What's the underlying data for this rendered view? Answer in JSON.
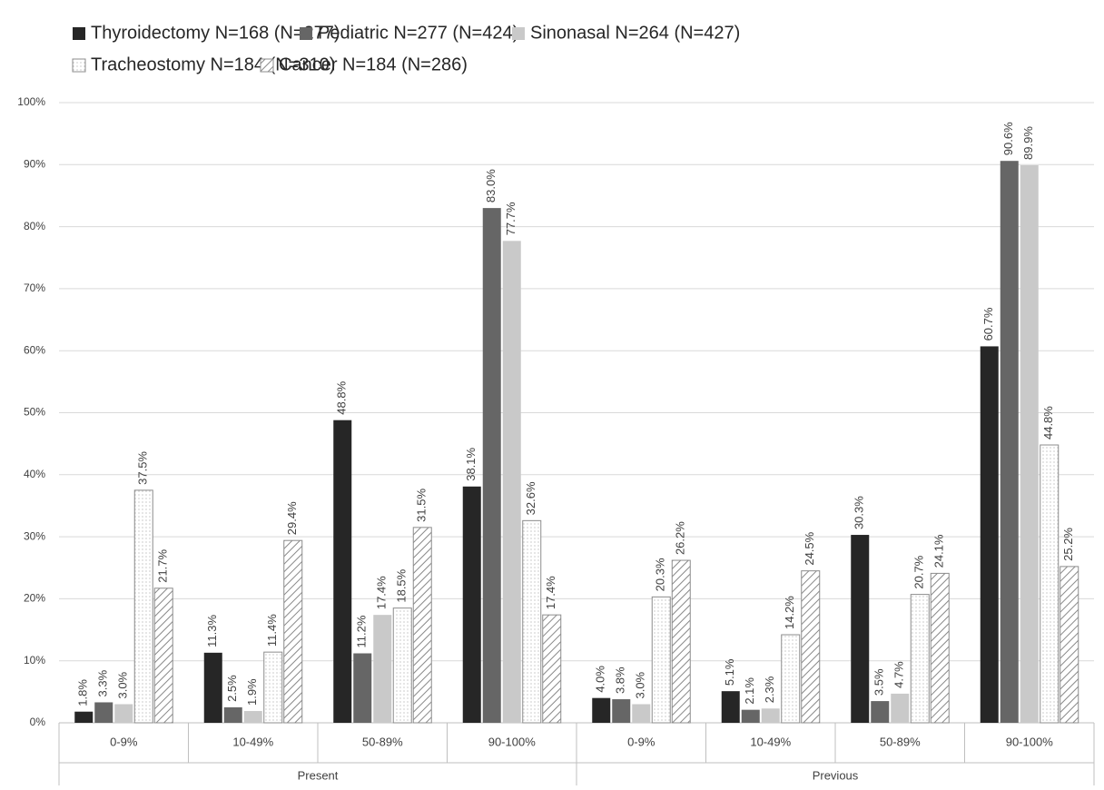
{
  "chart_data": {
    "type": "bar",
    "categories": [
      "0-9%",
      "10-49%",
      "50-89%",
      "90-100%",
      "0-9%",
      "10-49%",
      "50-89%",
      "90-100%"
    ],
    "category_groups": [
      "Present",
      "Previous"
    ],
    "series": [
      {
        "name": "Thyroidectomy N=168 (N=277)",
        "color": "#262626",
        "pattern": "solid",
        "values": [
          1.8,
          11.3,
          48.8,
          38.1,
          4.0,
          5.1,
          30.3,
          60.7
        ],
        "value_labels": [
          "1.8%",
          "11.3%",
          "48.8%",
          "38.1%",
          "4.0%",
          "5.1%",
          "30.3%",
          "60.7%"
        ]
      },
      {
        "name": "Pediatric N=277 (N=424)",
        "color": "#666666",
        "pattern": "solid",
        "values": [
          3.3,
          2.5,
          11.2,
          83.0,
          3.8,
          2.1,
          3.5,
          90.6
        ],
        "value_labels": [
          "3.3%",
          "2.5%",
          "11.2%",
          "83.0%",
          "3.8%",
          "2.1%",
          "3.5%",
          "90.6%"
        ]
      },
      {
        "name": "Sinonasal N=264 (N=427)",
        "color": "#c9c9c9",
        "pattern": "solid",
        "values": [
          3.0,
          1.9,
          17.4,
          77.7,
          3.0,
          2.3,
          4.7,
          89.9
        ],
        "value_labels": [
          "3.0%",
          "1.9%",
          "17.4%",
          "77.7%",
          "3.0%",
          "2.3%",
          "4.7%",
          "89.9%"
        ]
      },
      {
        "name": "Tracheostomy N=184 (N=310)",
        "color": "#ffffff",
        "pattern": "dots",
        "values": [
          37.5,
          11.4,
          18.5,
          32.6,
          20.3,
          14.2,
          20.7,
          44.8
        ],
        "value_labels": [
          "37.5%",
          "11.4%",
          "18.5%",
          "32.6%",
          "20.3%",
          "14.2%",
          "20.7%",
          "44.8%"
        ]
      },
      {
        "name": "Cancer N=184 (N=286)",
        "color": "#ffffff",
        "pattern": "hatch",
        "values": [
          21.7,
          29.4,
          31.5,
          17.4,
          26.2,
          24.5,
          24.1,
          25.2
        ],
        "value_labels": [
          "21.7%",
          "29.4%",
          "31.5%",
          "17.4%",
          "26.2%",
          "24.5%",
          "24.1%",
          "25.2%"
        ]
      }
    ],
    "ylim": [
      0,
      100
    ],
    "yticks": [
      {
        "value": 0,
        "label": "0%"
      },
      {
        "value": 10,
        "label": "10%"
      },
      {
        "value": 20,
        "label": "20%"
      },
      {
        "value": 30,
        "label": "30%"
      },
      {
        "value": 40,
        "label": "40%"
      },
      {
        "value": 50,
        "label": "50%"
      },
      {
        "value": 60,
        "label": "60%"
      },
      {
        "value": 70,
        "label": "70%"
      },
      {
        "value": 80,
        "label": "80%"
      },
      {
        "value": 90,
        "label": "90%"
      },
      {
        "value": 100,
        "label": "100%"
      }
    ],
    "grid": true
  }
}
